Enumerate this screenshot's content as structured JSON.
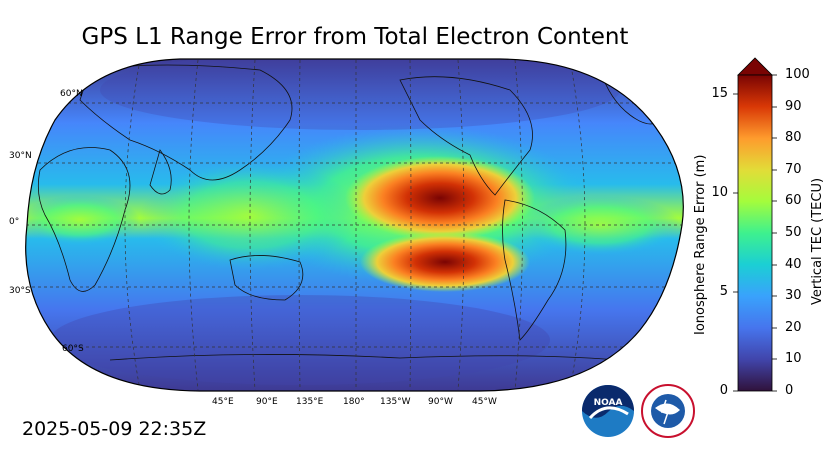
{
  "title": "GPS L1 Range Error from Total Electron Content",
  "timestamp": "2025-05-09 22:35Z",
  "map": {
    "projection": "Robinson",
    "lat_labels": [
      "60°N",
      "30°N",
      "0°",
      "30°S",
      "60°S"
    ],
    "lon_labels": [
      "45°E",
      "90°E",
      "135°E",
      "180°",
      "135°W",
      "90°W",
      "45°W"
    ]
  },
  "colorbar": {
    "left_axis_label": "Ionosphere Range Error (m)",
    "right_axis_label": "Vertical TEC (TECU)",
    "left_ticks": [
      "15",
      "10",
      "5",
      "0"
    ],
    "right_ticks": [
      "100",
      "90",
      "80",
      "70",
      "60",
      "50",
      "40",
      "30",
      "20",
      "10",
      "0"
    ],
    "range_tecu": [
      0,
      100
    ],
    "range_m": [
      0,
      16.2
    ],
    "extend": "max"
  },
  "colors": {
    "cmap_low": "#30123b",
    "cmap_mid": "#a4fc3c",
    "cmap_high": "#7a0403"
  },
  "logos": [
    "noaa-logo",
    "national-weather-service-logo"
  ]
}
